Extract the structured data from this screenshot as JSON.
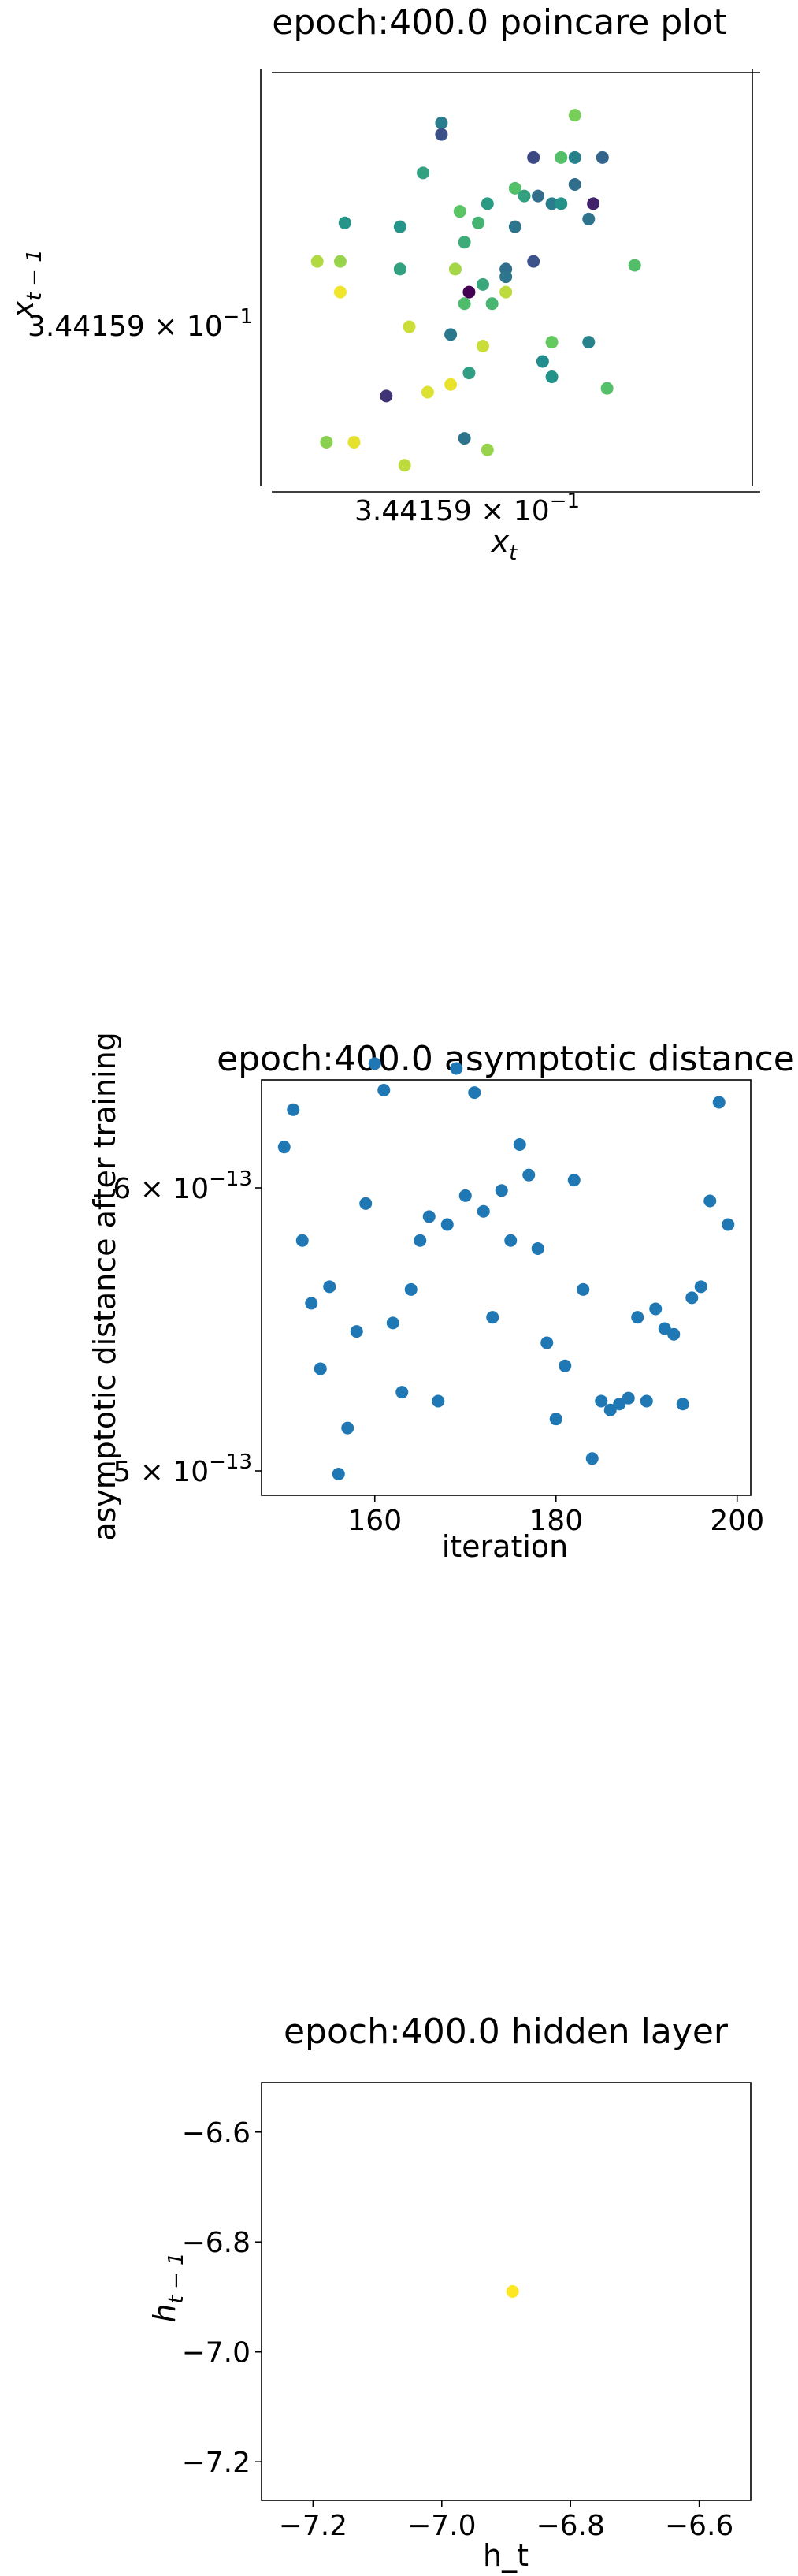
{
  "charts": {
    "poincare": {
      "title": "epoch:400.0 poincare plot",
      "xlabel_base": "x",
      "xlabel_sub": "t",
      "ylabel_base": "x",
      "ylabel_sub": "t − 1",
      "tick_mantissa": "3.44159 × 10",
      "tick_exponent": "−1"
    },
    "asymptotic": {
      "title": "epoch:400.0 asymptotic distance",
      "xlabel": "iteration",
      "ylabel": "asymptotic distance after training",
      "ytick_hi_mantissa": "6 × 10",
      "ytick_hi_exponent": "−13",
      "ytick_lo_mantissa": "5 × 10",
      "ytick_lo_exponent": "−13",
      "xticks": [
        "160",
        "180",
        "200"
      ]
    },
    "hidden": {
      "title": "epoch:400.0 hidden layer",
      "xlabel": "h_t",
      "ylabel_base": "h",
      "ylabel_sub": "t − 1",
      "xticks": [
        "−7.2",
        "−7.0",
        "−6.8",
        "−6.6"
      ],
      "yticks": [
        "−6.6",
        "−6.8",
        "−7.0",
        "−7.2"
      ]
    }
  },
  "chart_data": [
    {
      "type": "scatter",
      "title": "epoch:400.0 poincare plot",
      "xlabel": "x_t",
      "ylabel": "x_{t-1}",
      "xtick": "3.44159 × 10^-1",
      "ytick": "3.44159 × 10^-1",
      "colormap": "viridis",
      "points_normalized": [
        [
          0.64,
          0.07,
          0.79
        ],
        [
          0.35,
          0.09,
          0.42
        ],
        [
          0.35,
          0.12,
          0.24
        ],
        [
          0.61,
          0.18,
          0.71
        ],
        [
          0.55,
          0.18,
          0.22
        ],
        [
          0.64,
          0.18,
          0.44
        ],
        [
          0.7,
          0.18,
          0.32
        ],
        [
          0.31,
          0.22,
          0.57
        ],
        [
          0.51,
          0.26,
          0.71
        ],
        [
          0.53,
          0.28,
          0.57
        ],
        [
          0.56,
          0.28,
          0.36
        ],
        [
          0.64,
          0.25,
          0.36
        ],
        [
          0.68,
          0.3,
          0.1
        ],
        [
          0.59,
          0.3,
          0.42
        ],
        [
          0.61,
          0.3,
          0.51
        ],
        [
          0.45,
          0.3,
          0.54
        ],
        [
          0.39,
          0.32,
          0.73
        ],
        [
          0.67,
          0.34,
          0.38
        ],
        [
          0.14,
          0.35,
          0.52
        ],
        [
          0.51,
          0.36,
          0.39
        ],
        [
          0.26,
          0.36,
          0.52
        ],
        [
          0.43,
          0.35,
          0.65
        ],
        [
          0.4,
          0.4,
          0.62
        ],
        [
          0.55,
          0.45,
          0.25
        ],
        [
          0.08,
          0.45,
          0.88
        ],
        [
          0.13,
          0.45,
          0.84
        ],
        [
          0.26,
          0.47,
          0.57
        ],
        [
          0.38,
          0.47,
          0.86
        ],
        [
          0.49,
          0.47,
          0.36
        ],
        [
          0.49,
          0.49,
          0.39
        ],
        [
          0.77,
          0.46,
          0.7
        ],
        [
          0.13,
          0.53,
          0.98
        ],
        [
          0.41,
          0.53,
          0.0
        ],
        [
          0.44,
          0.51,
          0.6
        ],
        [
          0.49,
          0.53,
          0.9
        ],
        [
          0.4,
          0.56,
          0.69
        ],
        [
          0.46,
          0.56,
          0.66
        ],
        [
          0.59,
          0.66,
          0.76
        ],
        [
          0.67,
          0.66,
          0.44
        ],
        [
          0.28,
          0.62,
          0.92
        ],
        [
          0.37,
          0.64,
          0.4
        ],
        [
          0.44,
          0.67,
          0.92
        ],
        [
          0.57,
          0.71,
          0.48
        ],
        [
          0.41,
          0.74,
          0.56
        ],
        [
          0.59,
          0.75,
          0.51
        ],
        [
          0.71,
          0.78,
          0.71
        ],
        [
          0.23,
          0.8,
          0.15
        ],
        [
          0.32,
          0.79,
          0.95
        ],
        [
          0.37,
          0.77,
          0.97
        ],
        [
          0.4,
          0.91,
          0.38
        ],
        [
          0.1,
          0.92,
          0.82
        ],
        [
          0.16,
          0.92,
          0.96
        ],
        [
          0.45,
          0.94,
          0.84
        ],
        [
          0.27,
          0.98,
          0.9
        ]
      ]
    },
    {
      "type": "scatter",
      "title": "epoch:400.0 asymptotic distance",
      "xlabel": "iteration",
      "ylabel": "asymptotic distance after training",
      "yscale": "log",
      "xlim": [
        147.5,
        201.5
      ],
      "ylim": [
        4.94e-13,
        6.6e-13
      ],
      "x": [
        150,
        151,
        152,
        153,
        154,
        155,
        156,
        157,
        158,
        159,
        160,
        161,
        162,
        163,
        164,
        165,
        166,
        167,
        168,
        169,
        170,
        171,
        172,
        173,
        174,
        175,
        176,
        177,
        178,
        179,
        180,
        181,
        182,
        183,
        184,
        185,
        186,
        187,
        188,
        189,
        190,
        191,
        192,
        193,
        194,
        195,
        196,
        197,
        198,
        199
      ],
      "y": [
        6.16e-13,
        6.31e-13,
        5.8e-13,
        5.57e-13,
        5.34e-13,
        5.63e-13,
        4.99e-13,
        5.14e-13,
        5.47e-13,
        5.94e-13,
        6.5e-13,
        6.39e-13,
        5.5e-13,
        5.26e-13,
        5.62e-13,
        5.8e-13,
        5.89e-13,
        5.23e-13,
        5.86e-13,
        6.48e-13,
        5.97e-13,
        6.38e-13,
        5.91e-13,
        5.52e-13,
        5.99e-13,
        5.8e-13,
        6.17e-13,
        6.05e-13,
        5.77e-13,
        5.43e-13,
        5.17e-13,
        5.35e-13,
        6.03e-13,
        5.62e-13,
        5.04e-13,
        5.23e-13,
        5.2e-13,
        5.22e-13,
        5.24e-13,
        5.52e-13,
        5.23e-13,
        5.55e-13,
        5.48e-13,
        5.46e-13,
        5.22e-13,
        5.59e-13,
        5.63e-13,
        5.95e-13,
        6.34e-13,
        5.86e-13
      ]
    },
    {
      "type": "scatter",
      "title": "epoch:400.0 hidden layer",
      "xlabel": "h_t",
      "ylabel": "h_{t-1}",
      "xlim": [
        -7.28,
        -6.52
      ],
      "ylim": [
        -7.27,
        -6.51
      ],
      "x": [
        -6.89
      ],
      "y": [
        -6.89
      ]
    }
  ],
  "colors": {
    "series": "#1f77b4",
    "hidden_point": "#fde725",
    "axes": "#000000"
  }
}
